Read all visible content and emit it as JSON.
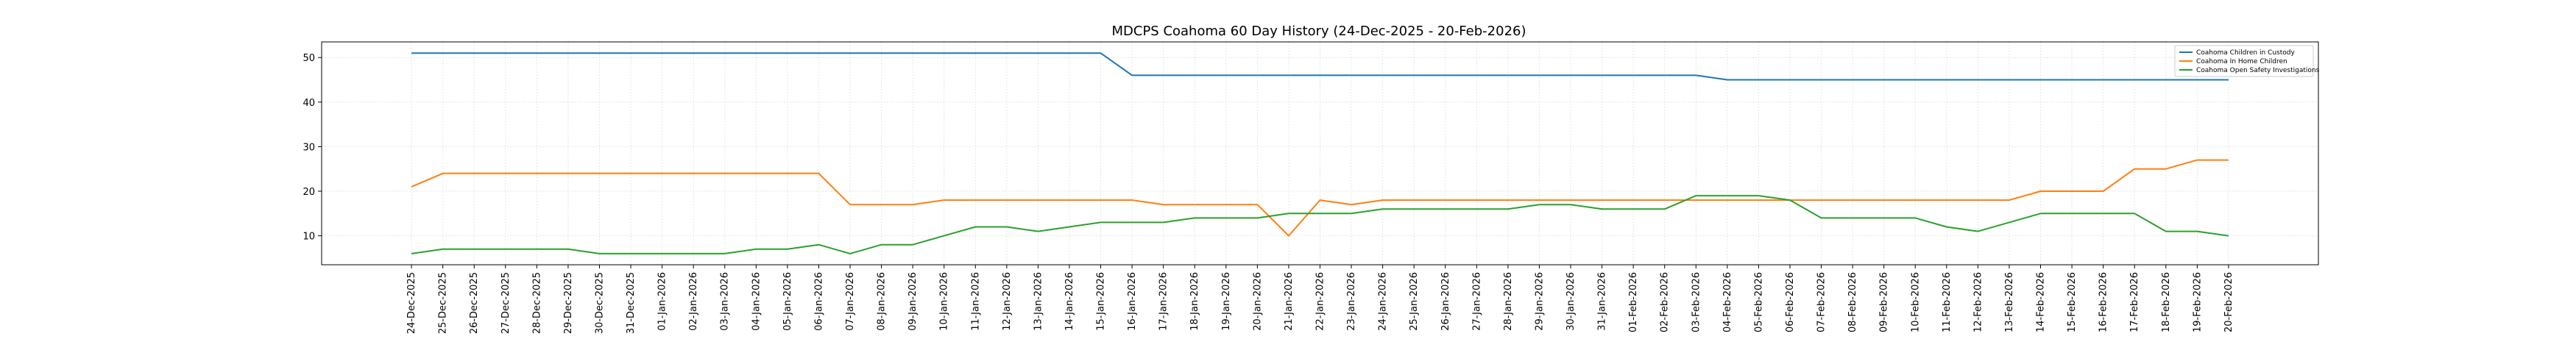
{
  "chart_data": {
    "type": "line",
    "title": "MDCPS Coahoma 60 Day History (24-Dec-2025 - 20-Feb-2026)",
    "xlabel": "",
    "ylabel": "",
    "ylim": [
      3.5,
      53.5
    ],
    "yticks": [
      10,
      20,
      30,
      40,
      50
    ],
    "grid": true,
    "legend_position": "top-right",
    "x": [
      "24-Dec-2025",
      "25-Dec-2025",
      "26-Dec-2025",
      "27-Dec-2025",
      "28-Dec-2025",
      "29-Dec-2025",
      "30-Dec-2025",
      "31-Dec-2025",
      "01-Jan-2026",
      "02-Jan-2026",
      "03-Jan-2026",
      "04-Jan-2026",
      "05-Jan-2026",
      "06-Jan-2026",
      "07-Jan-2026",
      "08-Jan-2026",
      "09-Jan-2026",
      "10-Jan-2026",
      "11-Jan-2026",
      "12-Jan-2026",
      "13-Jan-2026",
      "14-Jan-2026",
      "15-Jan-2026",
      "16-Jan-2026",
      "17-Jan-2026",
      "18-Jan-2026",
      "19-Jan-2026",
      "20-Jan-2026",
      "21-Jan-2026",
      "22-Jan-2026",
      "23-Jan-2026",
      "24-Jan-2026",
      "25-Jan-2026",
      "26-Jan-2026",
      "27-Jan-2026",
      "28-Jan-2026",
      "29-Jan-2026",
      "30-Jan-2026",
      "31-Jan-2026",
      "01-Feb-2026",
      "02-Feb-2026",
      "03-Feb-2026",
      "04-Feb-2026",
      "05-Feb-2026",
      "06-Feb-2026",
      "07-Feb-2026",
      "08-Feb-2026",
      "09-Feb-2026",
      "10-Feb-2026",
      "11-Feb-2026",
      "12-Feb-2026",
      "13-Feb-2026",
      "14-Feb-2026",
      "15-Feb-2026",
      "16-Feb-2026",
      "17-Feb-2026",
      "18-Feb-2026",
      "19-Feb-2026",
      "20-Feb-2026"
    ],
    "series": [
      {
        "name": "Coahoma Children in Custody",
        "color": "#1f77b4",
        "values": [
          51,
          51,
          51,
          51,
          51,
          51,
          51,
          51,
          51,
          51,
          51,
          51,
          51,
          51,
          51,
          51,
          51,
          51,
          51,
          51,
          51,
          51,
          51,
          46,
          46,
          46,
          46,
          46,
          46,
          46,
          46,
          46,
          46,
          46,
          46,
          46,
          46,
          46,
          46,
          46,
          46,
          46,
          45,
          45,
          45,
          45,
          45,
          45,
          45,
          45,
          45,
          45,
          45,
          45,
          45,
          45,
          45,
          45,
          45
        ]
      },
      {
        "name": "Coahoma In Home Children",
        "color": "#ff7f0e",
        "values": [
          21,
          24,
          24,
          24,
          24,
          24,
          24,
          24,
          24,
          24,
          24,
          24,
          24,
          24,
          17,
          17,
          17,
          18,
          18,
          18,
          18,
          18,
          18,
          18,
          17,
          17,
          17,
          17,
          10,
          18,
          17,
          18,
          18,
          18,
          18,
          18,
          18,
          18,
          18,
          18,
          18,
          18,
          18,
          18,
          18,
          18,
          18,
          18,
          18,
          18,
          18,
          18,
          20,
          20,
          20,
          25,
          25,
          27,
          27
        ]
      },
      {
        "name": "Coahoma Open Safety Investigations",
        "color": "#2ca02c",
        "values": [
          6,
          7,
          7,
          7,
          7,
          7,
          6,
          6,
          6,
          6,
          6,
          7,
          7,
          8,
          6,
          8,
          8,
          10,
          12,
          12,
          11,
          12,
          13,
          13,
          13,
          14,
          14,
          14,
          15,
          15,
          15,
          16,
          16,
          16,
          16,
          16,
          17,
          17,
          16,
          16,
          16,
          19,
          19,
          19,
          18,
          14,
          14,
          14,
          14,
          12,
          11,
          13,
          15,
          15,
          15,
          15,
          11,
          11,
          10
        ]
      }
    ]
  }
}
